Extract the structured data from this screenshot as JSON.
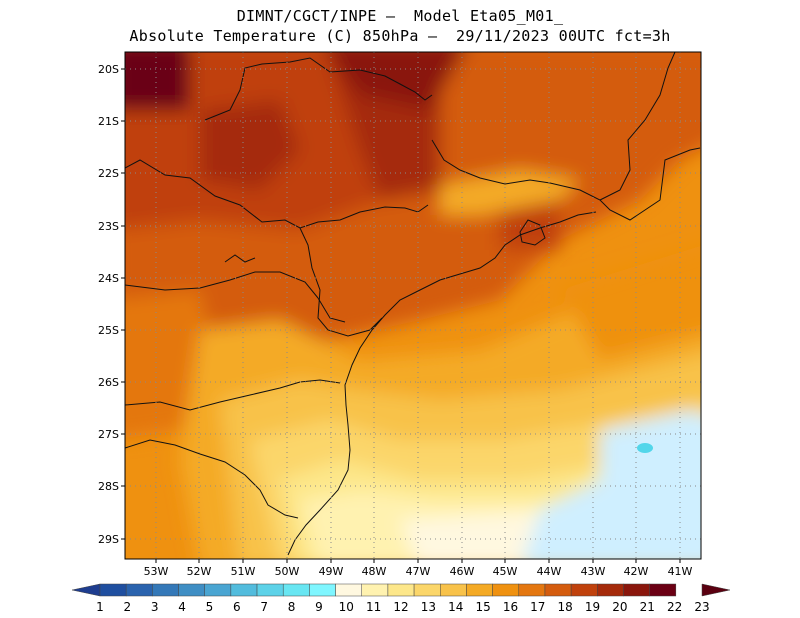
{
  "title": {
    "line1": "DIMNT/CGCT/INPE –  Model Eta05_M01_",
    "line2": "Absolute Temperature (C) 850hPa –  29/11/2023 00UTC fct=3h"
  },
  "map": {
    "lat_labels": [
      "20S",
      "21S",
      "22S",
      "23S",
      "24S",
      "25S",
      "26S",
      "27S",
      "28S",
      "29S"
    ],
    "lon_labels": [
      "53W",
      "52W",
      "51W",
      "50W",
      "49W",
      "48W",
      "47W",
      "46W",
      "45W",
      "44W",
      "43W",
      "42W",
      "41W"
    ]
  },
  "colorbar": {
    "labels": [
      "1",
      "2",
      "3",
      "4",
      "5",
      "6",
      "7",
      "8",
      "9",
      "10",
      "11",
      "12",
      "13",
      "14",
      "15",
      "16",
      "17",
      "18",
      "19",
      "20",
      "21",
      "22",
      "23"
    ],
    "colors": [
      "#1e3d8f",
      "#1f4fa0",
      "#2a63ae",
      "#3478b8",
      "#3f8ec4",
      "#4aa5d2",
      "#52bcdd",
      "#5dd2e8",
      "#68e6f2",
      "#7ff6ff",
      "#fff8e0",
      "#fff2b0",
      "#fde78a",
      "#fbd66a",
      "#f8c24a",
      "#f4aa25",
      "#ef9110",
      "#e47710",
      "#d45c0e",
      "#c0410c",
      "#a52a0b",
      "#8a160c",
      "#6b0014",
      "#5a0010"
    ]
  }
}
